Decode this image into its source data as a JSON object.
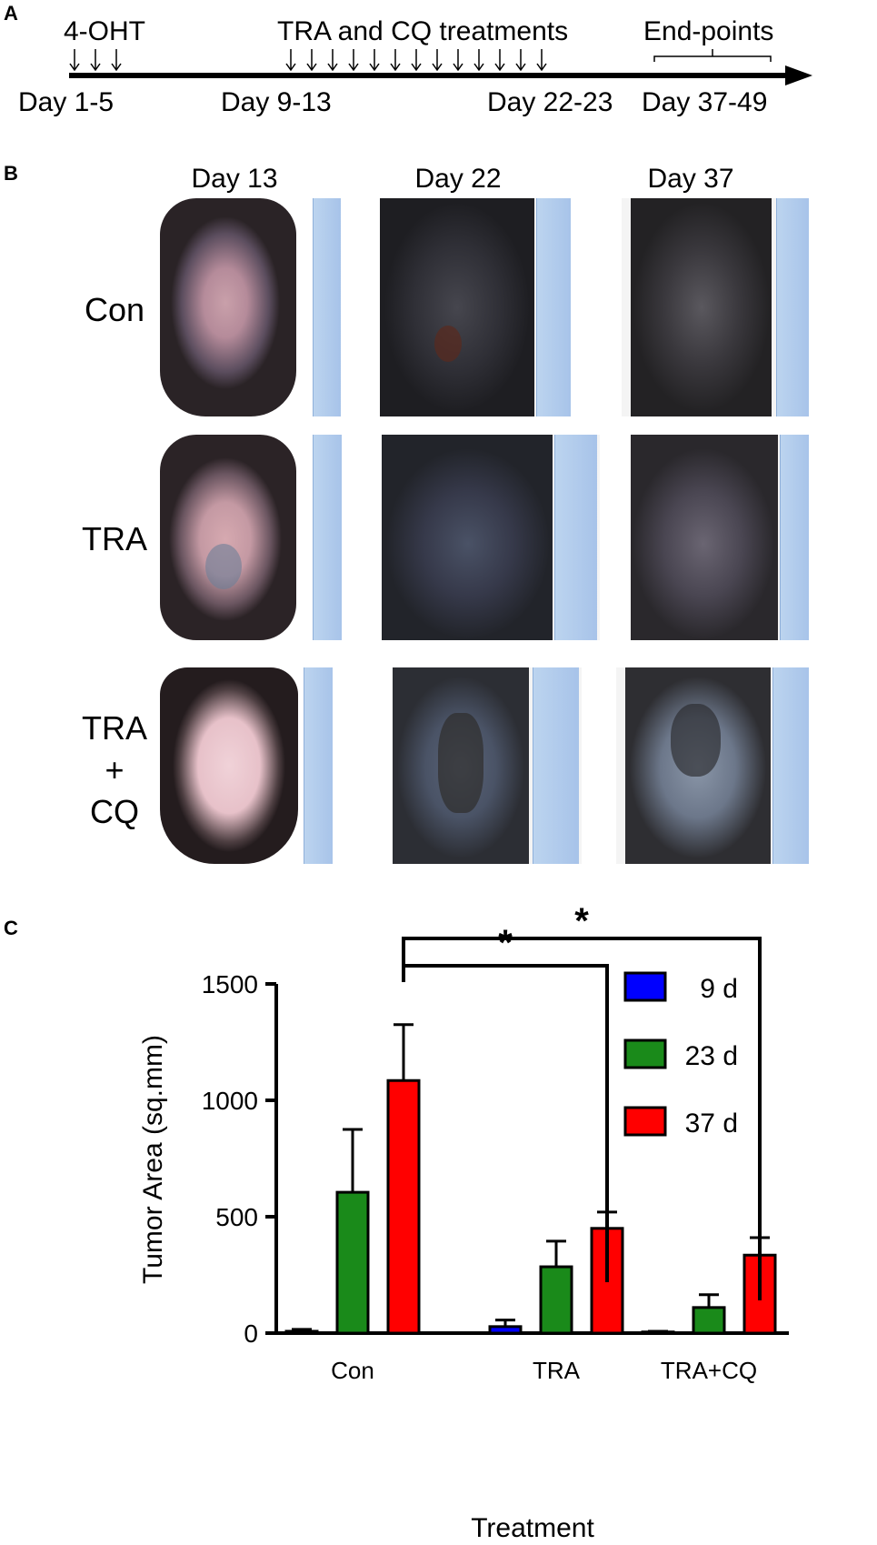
{
  "panels": {
    "a": "A",
    "b": "B",
    "c": "C"
  },
  "timeline": {
    "markers": [
      {
        "label": "4-OHT",
        "position": "top"
      },
      {
        "label": "TRA and CQ treatments",
        "position": "top"
      },
      {
        "label": "End-points",
        "position": "top"
      }
    ],
    "days": [
      "Day 1-5",
      "Day 9-13",
      "Day 22-23",
      "Day 37-49"
    ]
  },
  "photos": {
    "columns": [
      "Day 13",
      "Day 22",
      "Day 37"
    ],
    "rows": [
      {
        "label_lines": [
          "Con"
        ]
      },
      {
        "label_lines": [
          "TRA"
        ]
      },
      {
        "label_lines": [
          "TRA",
          "+",
          "CQ"
        ]
      }
    ]
  },
  "chart_data": {
    "type": "bar",
    "xlabel": "Treatment",
    "ylabel": "Tumor Area (sq.mm)",
    "ylim": [
      0,
      1500
    ],
    "yticks": [
      0,
      500,
      1000,
      1500
    ],
    "categories": [
      "Con",
      "TRA",
      "TRA+CQ"
    ],
    "series": [
      {
        "name": "9 d",
        "color": "#0000ff",
        "values": [
          8,
          28,
          5
        ],
        "errors": [
          8,
          28,
          3
        ]
      },
      {
        "name": "23 d",
        "color": "#1a8a1a",
        "values": [
          605,
          285,
          110
        ],
        "errors": [
          270,
          110,
          55
        ]
      },
      {
        "name": "37 d",
        "color": "#ff0000",
        "values": [
          1085,
          450,
          335
        ],
        "errors": [
          240,
          70,
          75
        ]
      }
    ],
    "significance": [
      {
        "from": "Con",
        "to": "TRA",
        "label": "*"
      },
      {
        "from": "Con",
        "to": "TRA+CQ",
        "label": "*"
      }
    ],
    "legend_position": "right"
  }
}
